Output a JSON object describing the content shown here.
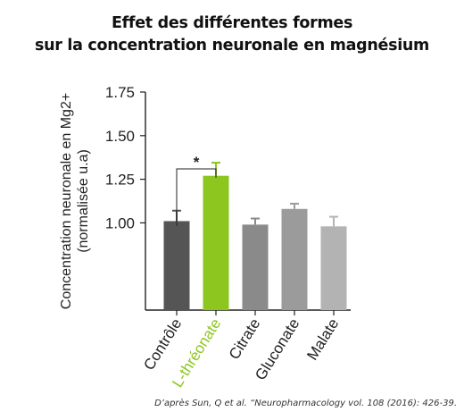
{
  "title_lines": [
    "Effet des différentes formes",
    "sur la concentration neuronale en magnésium"
  ],
  "source": "D’après Sun, Q et al. “Neuropharmacology vol. 108 (2016): 426-39.",
  "significance_marker": "*",
  "colors": {
    "bars": [
      "#555555",
      "#8cc61f",
      "#8a8a8a",
      "#9b9b9b",
      "#b3b3b3"
    ],
    "highlight_label": "#8cc61f",
    "text": "#222222"
  },
  "chart_data": {
    "type": "bar",
    "ylabel_lines": [
      "Concentration neuronale en Mg2+",
      "(normalisée u.a)"
    ],
    "xlabel": "",
    "categories": [
      "Contrôle",
      "L-thréonate",
      "Citrate",
      "Gluconate",
      "Malate"
    ],
    "values": [
      1.01,
      1.27,
      0.99,
      1.08,
      0.98
    ],
    "errors": [
      0.06,
      0.075,
      0.035,
      0.03,
      0.055
    ],
    "ytick_labels": [
      "1.00",
      "1.25",
      "1.50",
      "1.75"
    ],
    "yticks": [
      1.0,
      1.25,
      1.5,
      1.75
    ],
    "ylim": [
      0.5,
      1.75
    ],
    "grid": false,
    "significance": {
      "between": [
        0,
        1
      ],
      "label": "*"
    }
  }
}
